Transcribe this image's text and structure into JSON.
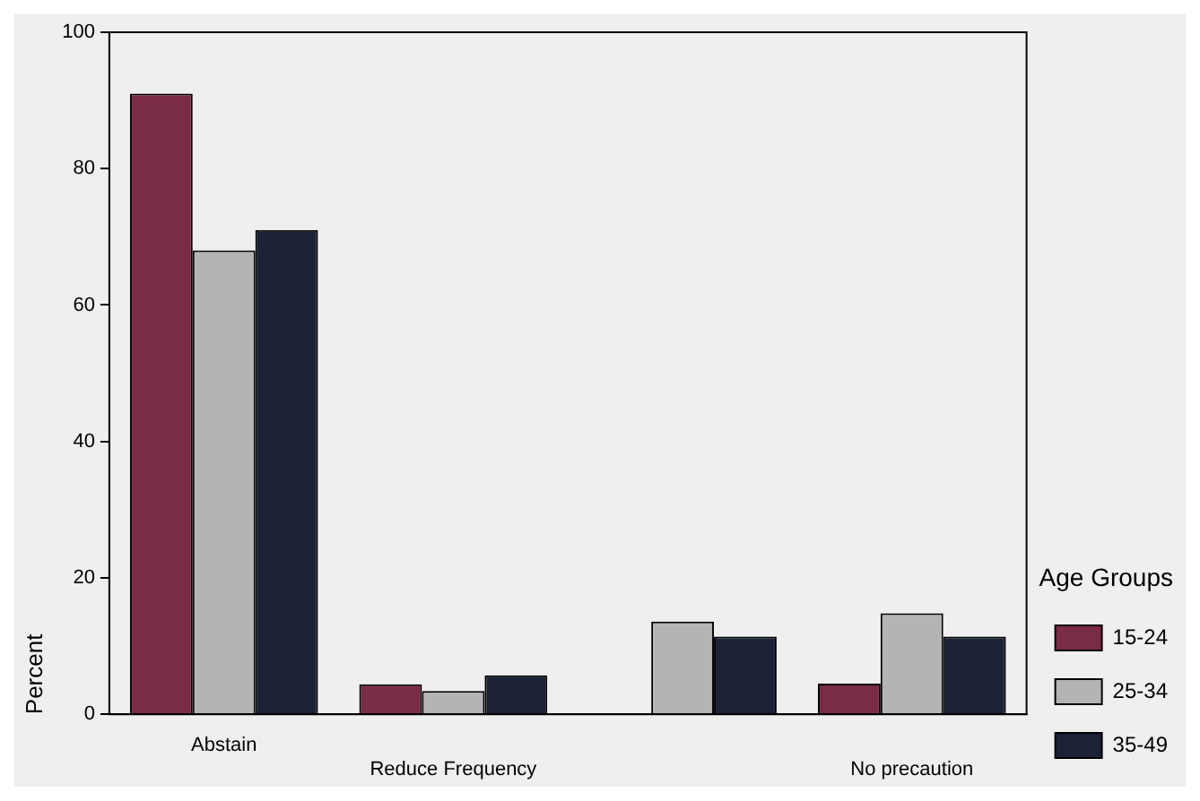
{
  "chart_data": {
    "type": "bar",
    "ylabel": "Percent",
    "legend_title": "Age Groups",
    "categories": [
      "Abstain",
      "Reduce Frequency",
      null,
      "No precaution"
    ],
    "series": [
      {
        "name": "15-24",
        "color": "#7a2b45",
        "values": [
          91,
          4.4,
          0,
          4.5
        ]
      },
      {
        "name": "25-34",
        "color": "#b4b4b4",
        "values": [
          68,
          3.4,
          13.6,
          14.8
        ]
      },
      {
        "name": "35-49",
        "color": "#1b2136",
        "values": [
          71,
          5.7,
          11.4,
          11.4
        ]
      }
    ],
    "ylim": [
      0,
      100
    ],
    "yticks": [
      0,
      20,
      40,
      60,
      80,
      100
    ],
    "grid": false,
    "legend": "right"
  }
}
